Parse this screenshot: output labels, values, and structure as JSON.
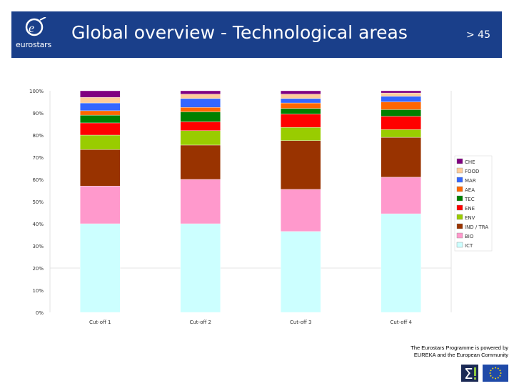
{
  "header": {
    "logo_text": "eurostars",
    "title": "Global overview - Technological areas",
    "page_number": "> 45",
    "background": "#1a3f8a"
  },
  "chart_data": {
    "type": "bar",
    "stacked": true,
    "percent": true,
    "categories": [
      "Cut-off 1",
      "Cut-off 2",
      "Cut-off 3",
      "Cut-off 4"
    ],
    "y_ticks": [
      "0%",
      "10%",
      "20%",
      "30%",
      "40%",
      "50%",
      "60%",
      "70%",
      "80%",
      "90%",
      "100%"
    ],
    "ylim": [
      0,
      100
    ],
    "legend_position": "right",
    "series": [
      {
        "name": "ICT",
        "color": "#ccffff",
        "values": [
          40,
          40,
          36.5,
          44.5
        ]
      },
      {
        "name": "BIO",
        "color": "#ff99cc",
        "values": [
          17,
          20,
          19,
          16.5
        ]
      },
      {
        "name": "IND / TRA",
        "color": "#993300",
        "values": [
          16.5,
          15.5,
          22,
          18
        ]
      },
      {
        "name": "ENV",
        "color": "#99cc00",
        "values": [
          6.5,
          6.5,
          6,
          3.5
        ]
      },
      {
        "name": "ENE",
        "color": "#ff0000",
        "values": [
          5.5,
          4,
          6,
          6
        ]
      },
      {
        "name": "TEC",
        "color": "#008000",
        "values": [
          3.5,
          4.5,
          2.5,
          3
        ]
      },
      {
        "name": "AEA",
        "color": "#ff6600",
        "values": [
          2,
          2,
          2.5,
          3.5
        ]
      },
      {
        "name": "MAR",
        "color": "#3366ff",
        "values": [
          3.5,
          4,
          2,
          2.5
        ]
      },
      {
        "name": "FOOD",
        "color": "#ffcc99",
        "values": [
          2.5,
          2,
          2,
          1.5
        ]
      },
      {
        "name": "CHE",
        "color": "#800080",
        "values": [
          3,
          1.5,
          1.5,
          1
        ]
      }
    ]
  },
  "footer": {
    "line1": "The Eurostars Programme is powered by",
    "line2": "EUREKA and the European Community"
  }
}
